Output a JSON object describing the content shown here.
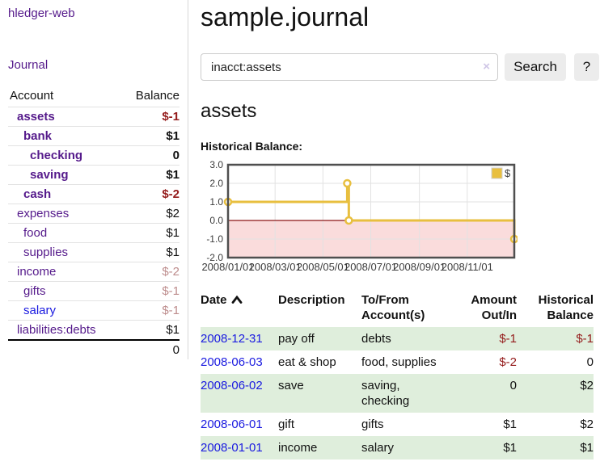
{
  "app": {
    "brand": "hledger-web"
  },
  "sidebar": {
    "journal_link": "Journal",
    "accounts_table": {
      "headers": {
        "account": "Account",
        "balance": "Balance"
      },
      "rows": [
        {
          "name": "assets",
          "indent": 1,
          "bold": true,
          "balance": "$-1",
          "balance_tone": "negative"
        },
        {
          "name": "bank",
          "indent": 2,
          "bold": true,
          "balance": "$1",
          "balance_tone": "normal"
        },
        {
          "name": "checking",
          "indent": 3,
          "bold": true,
          "balance": "0",
          "balance_tone": "normal"
        },
        {
          "name": "saving",
          "indent": 3,
          "bold": true,
          "balance": "$1",
          "balance_tone": "normal"
        },
        {
          "name": "cash",
          "indent": 2,
          "bold": true,
          "balance": "$-2",
          "balance_tone": "negative"
        },
        {
          "name": "expenses",
          "indent": 1,
          "bold": false,
          "balance": "$2",
          "balance_tone": "normal"
        },
        {
          "name": "food",
          "indent": 2,
          "bold": false,
          "balance": "$1",
          "balance_tone": "normal"
        },
        {
          "name": "supplies",
          "indent": 2,
          "bold": false,
          "balance": "$1",
          "balance_tone": "normal"
        },
        {
          "name": "income",
          "indent": 1,
          "bold": false,
          "balance": "$-2",
          "balance_tone": "negative-faded"
        },
        {
          "name": "gifts",
          "indent": 2,
          "bold": false,
          "balance": "$-1",
          "balance_tone": "negative-faded"
        },
        {
          "name": "salary",
          "indent": 2,
          "bold": false,
          "balance": "$-1",
          "balance_tone": "negative-faded",
          "link_color": "blue"
        },
        {
          "name": "liabilities:debts",
          "indent": 1,
          "bold": false,
          "balance": "$1",
          "balance_tone": "normal"
        }
      ],
      "total": "0"
    }
  },
  "main": {
    "title": "sample.journal",
    "search": {
      "query": "inacct:assets",
      "clear_icon": "×",
      "search_button": "Search",
      "help_button": "?"
    },
    "account_heading": "assets",
    "chart_heading": "Historical Balance:"
  },
  "chart_data": {
    "type": "line",
    "title": "Historical Balance",
    "series": [
      {
        "name": "$",
        "color": "#e8bf3f",
        "step": true,
        "points": [
          [
            "2008-01-01",
            1
          ],
          [
            "2008-06-01",
            2
          ],
          [
            "2008-06-03",
            0
          ],
          [
            "2008-12-31",
            -1
          ]
        ]
      }
    ],
    "ylim": [
      -2,
      3
    ],
    "yticks": [
      3,
      2,
      1,
      0,
      -1,
      -2
    ],
    "xrange": [
      "2008-01-01",
      "2008-12-31"
    ],
    "xtick_labels": [
      "2008/01/01",
      "2008/03/01",
      "2008/05/01",
      "2008/07/01",
      "2008/09/01",
      "2008/11/01"
    ],
    "negative_region_fill": "#fadcdc",
    "zero_line_color": "#8c1717",
    "grid": true,
    "legend_position": "top-right"
  },
  "register": {
    "headers": {
      "date": "Date",
      "description": "Description",
      "accounts": "To/From Account(s)",
      "amount": "Amount Out/In",
      "balance": "Historical Balance"
    },
    "rows": [
      {
        "date": "2008-12-31",
        "description": "pay off",
        "accounts": "debts",
        "amount": "$-1",
        "amount_negative": true,
        "balance": "$-1",
        "balance_negative": true
      },
      {
        "date": "2008-06-03",
        "description": "eat & shop",
        "accounts": "food, supplies",
        "amount": "$-2",
        "amount_negative": true,
        "balance": "0",
        "balance_negative": false
      },
      {
        "date": "2008-06-02",
        "description": "save",
        "accounts": "saving, checking",
        "amount": "0",
        "amount_negative": false,
        "balance": "$2",
        "balance_negative": false
      },
      {
        "date": "2008-06-01",
        "description": "gift",
        "accounts": "gifts",
        "amount": "$1",
        "amount_negative": false,
        "balance": "$2",
        "balance_negative": false
      },
      {
        "date": "2008-01-01",
        "description": "income",
        "accounts": "salary",
        "amount": "$1",
        "amount_negative": false,
        "balance": "$1",
        "balance_negative": false
      }
    ]
  },
  "colors": {
    "link_purple": "#551a8b",
    "link_blue": "#1a1ae0",
    "negative": "#941b1b",
    "negative_faded": "#bd8c8c",
    "row_stripe_green": "#dfeedc",
    "series_gold": "#e8bf3f"
  }
}
